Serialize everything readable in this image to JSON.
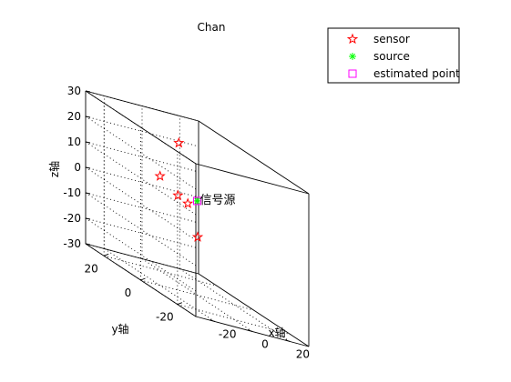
{
  "chart_data": {
    "type": "scatter",
    "title": "Chan",
    "xlabel": "x轴",
    "ylabel": "y轴",
    "zlabel": "z轴",
    "xlim": [
      -30,
      30
    ],
    "ylim": [
      -30,
      30
    ],
    "zlim": [
      -30,
      30
    ],
    "xticks": [
      -20,
      0,
      20
    ],
    "yticks": [
      -20,
      0,
      20
    ],
    "zticks": [
      -30,
      -20,
      -10,
      0,
      10,
      20,
      30
    ],
    "grid": true,
    "legend_position": "top-right",
    "series": [
      {
        "name": "sensor",
        "marker": "pentagram",
        "color": "#ff0000",
        "points": [
          {
            "x": -10,
            "y": 10,
            "z": 10
          },
          {
            "x": -20,
            "y": -10,
            "z": 10
          },
          {
            "x": 0,
            "y": 10,
            "z": 25
          },
          {
            "x": 10,
            "y": 10,
            "z": -10
          },
          {
            "x": -5,
            "y": 0,
            "z": 5
          }
        ]
      },
      {
        "name": "source",
        "marker": "asterisk",
        "color": "#00ff00",
        "points": [
          {
            "x": 0,
            "y": 0,
            "z": 7
          }
        ]
      },
      {
        "name": "estimated point",
        "marker": "square",
        "color": "#ff00ff",
        "points": [
          {
            "x": 0,
            "y": 0,
            "z": 7
          }
        ]
      }
    ],
    "annotations": [
      {
        "text": "信号源",
        "x": 0,
        "y": 0,
        "z": 7
      }
    ]
  }
}
